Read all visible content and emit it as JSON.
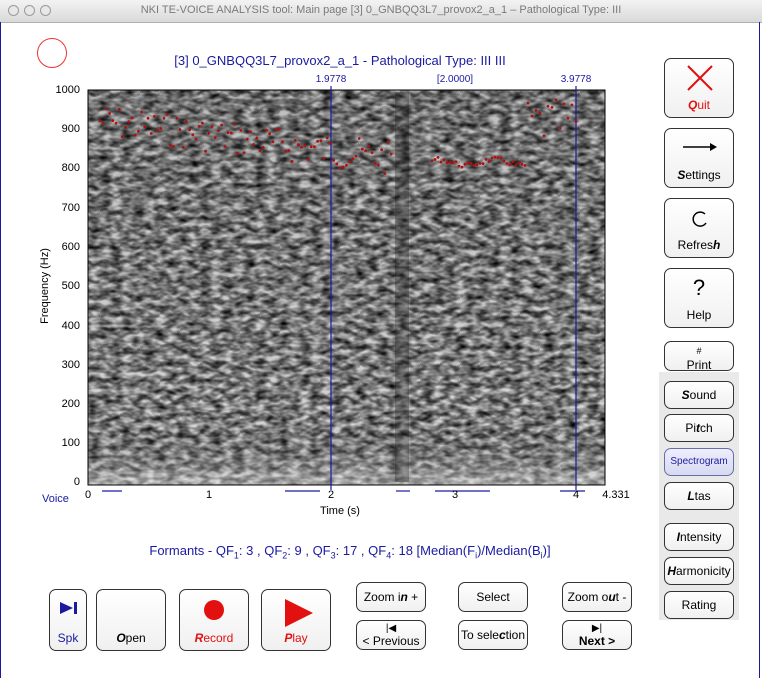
{
  "window": {
    "title": "NKI TE-VOICE ANALYSIS tool: Main page [3] 0_GNBQQ3L7_provox2_a_1 – Pathological Type: III"
  },
  "plot": {
    "title": "[3] 0_GNBQQ3L7_provox2_a_1 - Pathological Type: III  III",
    "ylabel": "Frequency (Hz)",
    "xlabel": "Time (s)",
    "voice_label": "Voice",
    "cursor_left_label": "1.9778",
    "cursor_mid_label": "[2.0000]",
    "cursor_right_label": "3.9778",
    "yticks": [
      "1000",
      "900",
      "800",
      "700",
      "600",
      "500",
      "400",
      "300",
      "200",
      "100",
      "0"
    ],
    "xticks": [
      "0",
      "1",
      "2",
      "3",
      "4",
      "4.331"
    ]
  },
  "formants": {
    "prefix": "Formants - QF",
    "sub1": "1",
    "v1": ": 3 , QF",
    "sub2": "2",
    "v2": ": 9 , QF",
    "sub3": "3",
    "v3": ": 17 , QF",
    "sub4": "4",
    "v4": ": 18 [Median(F",
    "subi1": "i",
    "mid": ")/Median(B",
    "subi2": "i",
    "end": ")]"
  },
  "right_buttons": {
    "quit": {
      "hot": "Q",
      "rest": "uit"
    },
    "settings": {
      "hot": "S",
      "rest": "ettings"
    },
    "refresh": {
      "pre": "Refres",
      "hot": "h"
    },
    "help": {
      "icon": "?",
      "label": "Help"
    },
    "print": {
      "icon": "#",
      "label": "Print"
    },
    "sound": {
      "hot": "S",
      "rest": "ound"
    },
    "pitch": {
      "pre": "Pi",
      "hot": "t",
      "rest": "ch"
    },
    "spectrogram": "Spectrogram",
    "ltas": {
      "hot": "L",
      "rest": "tas"
    },
    "intensity": {
      "hot": "I",
      "rest": "ntensity"
    },
    "harmonicity": {
      "hot": "H",
      "rest": "armonicity"
    },
    "rating": "Rating"
  },
  "bottom_buttons": {
    "spk": "Spk",
    "open": {
      "hot": "O",
      "rest": "pen"
    },
    "record": {
      "hot": "R",
      "rest": "ecord"
    },
    "play": {
      "hot": "P",
      "rest": "lay"
    },
    "zoom_in": {
      "pre": "Zoom i",
      "hot": "n",
      "rest": " +"
    },
    "previous": "< Previous",
    "select": "Select",
    "to_selection": {
      "pre": "To sele",
      "hot": "c",
      "rest": "tion"
    },
    "zoom_out": {
      "pre": "Zoom o",
      "hot": "u",
      "rest": "t -"
    },
    "next": "Next >"
  },
  "colors": {
    "accent": "#1a1aa0",
    "red": "#e31010",
    "formant_dots": "#b01010"
  }
}
